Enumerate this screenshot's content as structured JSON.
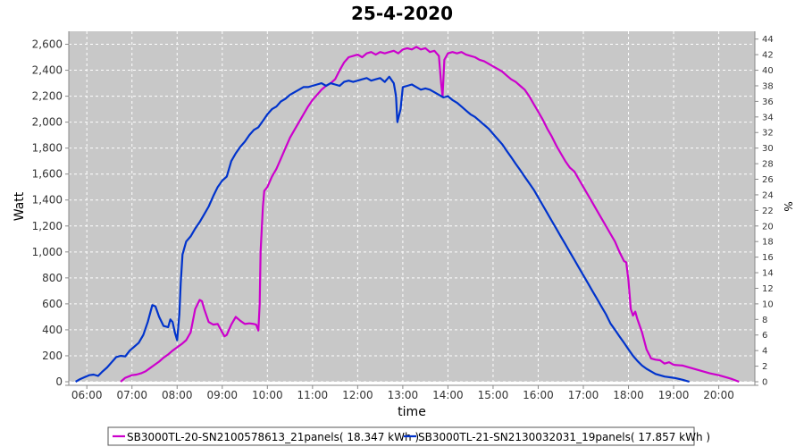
{
  "chart_data": {
    "type": "line",
    "title": "25-4-2020",
    "xlabel": "time",
    "ylabel": "Watt",
    "y2label": "%",
    "xlim": [
      5.6,
      20.8
    ],
    "ylim": [
      0,
      2700
    ],
    "y2lim": [
      0,
      45
    ],
    "xticks": [
      {
        "value": 6,
        "label": "06:00"
      },
      {
        "value": 7,
        "label": "07:00"
      },
      {
        "value": 8,
        "label": "08:00"
      },
      {
        "value": 9,
        "label": "09:00"
      },
      {
        "value": 10,
        "label": "10:00"
      },
      {
        "value": 11,
        "label": "11:00"
      },
      {
        "value": 12,
        "label": "12:00"
      },
      {
        "value": 13,
        "label": "13:00"
      },
      {
        "value": 14,
        "label": "14:00"
      },
      {
        "value": 15,
        "label": "15:00"
      },
      {
        "value": 16,
        "label": "16:00"
      },
      {
        "value": 17,
        "label": "17:00"
      },
      {
        "value": 18,
        "label": "18:00"
      },
      {
        "value": 19,
        "label": "19:00"
      },
      {
        "value": 20,
        "label": "20:00"
      }
    ],
    "yticks": [
      {
        "value": 0,
        "label": "0"
      },
      {
        "value": 200,
        "label": "200"
      },
      {
        "value": 400,
        "label": "400"
      },
      {
        "value": 600,
        "label": "600"
      },
      {
        "value": 800,
        "label": "800"
      },
      {
        "value": 1000,
        "label": "1,000"
      },
      {
        "value": 1200,
        "label": "1,200"
      },
      {
        "value": 1400,
        "label": "1,400"
      },
      {
        "value": 1600,
        "label": "1,600"
      },
      {
        "value": 1800,
        "label": "1,800"
      },
      {
        "value": 2000,
        "label": "2,000"
      },
      {
        "value": 2200,
        "label": "2,200"
      },
      {
        "value": 2400,
        "label": "2,400"
      },
      {
        "value": 2600,
        "label": "2,600"
      }
    ],
    "y2ticks": [
      0,
      2,
      4,
      6,
      8,
      10,
      12,
      14,
      16,
      18,
      20,
      22,
      24,
      26,
      28,
      30,
      32,
      34,
      36,
      38,
      40,
      42,
      44
    ],
    "grid": true,
    "background": "#c8c8c8",
    "legend_position": "bottom",
    "series": [
      {
        "name": "SB3000TL-20-SN2100578613_21panels( 18.347 kWh )",
        "color": "#cc00cc",
        "x": [
          6.75,
          6.85,
          7.0,
          7.1,
          7.2,
          7.3,
          7.4,
          7.5,
          7.6,
          7.7,
          7.8,
          7.9,
          8.0,
          8.1,
          8.2,
          8.3,
          8.4,
          8.5,
          8.55,
          8.6,
          8.7,
          8.8,
          8.9,
          9.0,
          9.05,
          9.1,
          9.2,
          9.3,
          9.4,
          9.5,
          9.6,
          9.7,
          9.75,
          9.8,
          9.83,
          9.85,
          9.9,
          9.93,
          10.0,
          10.1,
          10.2,
          10.3,
          10.4,
          10.5,
          10.6,
          10.7,
          10.8,
          10.9,
          11.0,
          11.1,
          11.2,
          11.3,
          11.4,
          11.5,
          11.6,
          11.7,
          11.8,
          11.9,
          12.0,
          12.1,
          12.2,
          12.3,
          12.4,
          12.5,
          12.6,
          12.7,
          12.8,
          12.9,
          13.0,
          13.1,
          13.2,
          13.3,
          13.4,
          13.5,
          13.6,
          13.7,
          13.8,
          13.85,
          13.88,
          13.92,
          14.0,
          14.1,
          14.2,
          14.3,
          14.4,
          14.5,
          14.6,
          14.7,
          14.8,
          14.9,
          15.0,
          15.1,
          15.2,
          15.3,
          15.4,
          15.5,
          15.6,
          15.7,
          15.8,
          15.9,
          16.0,
          16.1,
          16.2,
          16.3,
          16.4,
          16.5,
          16.6,
          16.7,
          16.8,
          16.9,
          17.0,
          17.1,
          17.2,
          17.3,
          17.4,
          17.5,
          17.6,
          17.7,
          17.8,
          17.9,
          17.95,
          18.0,
          18.05,
          18.1,
          18.15,
          18.2,
          18.3,
          18.4,
          18.5,
          18.6,
          18.7,
          18.8,
          18.9,
          19.0,
          19.2,
          19.4,
          19.6,
          19.8,
          20.0,
          20.2,
          20.3,
          20.45
        ],
        "y": [
          0,
          30,
          50,
          55,
          65,
          80,
          105,
          130,
          155,
          185,
          210,
          240,
          265,
          290,
          320,
          380,
          560,
          630,
          620,
          560,
          460,
          440,
          445,
          380,
          350,
          360,
          440,
          500,
          470,
          445,
          450,
          445,
          440,
          395,
          600,
          1000,
          1350,
          1470,
          1500,
          1580,
          1640,
          1720,
          1800,
          1880,
          1940,
          2000,
          2060,
          2120,
          2170,
          2210,
          2250,
          2280,
          2300,
          2330,
          2400,
          2460,
          2500,
          2510,
          2520,
          2500,
          2530,
          2540,
          2520,
          2540,
          2530,
          2540,
          2550,
          2530,
          2560,
          2570,
          2560,
          2580,
          2560,
          2570,
          2540,
          2550,
          2510,
          2300,
          2200,
          2480,
          2530,
          2540,
          2530,
          2540,
          2520,
          2510,
          2500,
          2480,
          2470,
          2450,
          2430,
          2410,
          2390,
          2360,
          2330,
          2310,
          2280,
          2250,
          2200,
          2140,
          2080,
          2020,
          1950,
          1890,
          1820,
          1760,
          1700,
          1650,
          1620,
          1560,
          1500,
          1440,
          1380,
          1320,
          1260,
          1200,
          1140,
          1080,
          1000,
          930,
          920,
          780,
          560,
          510,
          540,
          480,
          380,
          250,
          180,
          170,
          165,
          140,
          150,
          130,
          125,
          105,
          85,
          65,
          50,
          30,
          20,
          0
        ]
      },
      {
        "name": "SB3000TL-21-SN2130032031_19panels( 17.857 kWh )",
        "color": "#0033cc",
        "x": [
          5.75,
          5.85,
          5.95,
          6.05,
          6.15,
          6.25,
          6.35,
          6.45,
          6.55,
          6.65,
          6.75,
          6.85,
          6.95,
          7.05,
          7.15,
          7.25,
          7.35,
          7.45,
          7.52,
          7.6,
          7.7,
          7.8,
          7.85,
          7.9,
          7.95,
          8.0,
          8.05,
          8.08,
          8.12,
          8.2,
          8.3,
          8.4,
          8.5,
          8.6,
          8.7,
          8.8,
          8.9,
          9.0,
          9.1,
          9.2,
          9.3,
          9.4,
          9.5,
          9.6,
          9.7,
          9.8,
          9.9,
          10.0,
          10.1,
          10.2,
          10.3,
          10.4,
          10.5,
          10.6,
          10.7,
          10.8,
          10.9,
          11.0,
          11.1,
          11.2,
          11.3,
          11.4,
          11.5,
          11.6,
          11.7,
          11.8,
          11.9,
          12.0,
          12.1,
          12.2,
          12.3,
          12.4,
          12.5,
          12.6,
          12.7,
          12.8,
          12.85,
          12.88,
          12.95,
          13.0,
          13.1,
          13.2,
          13.3,
          13.4,
          13.5,
          13.6,
          13.7,
          13.8,
          13.9,
          14.0,
          14.1,
          14.2,
          14.3,
          14.4,
          14.5,
          14.6,
          14.7,
          14.8,
          14.9,
          15.0,
          15.1,
          15.2,
          15.3,
          15.4,
          15.5,
          15.6,
          15.7,
          15.8,
          15.9,
          16.0,
          16.1,
          16.2,
          16.3,
          16.4,
          16.5,
          16.6,
          16.7,
          16.8,
          16.9,
          17.0,
          17.1,
          17.2,
          17.3,
          17.4,
          17.5,
          17.6,
          17.7,
          17.8,
          17.9,
          18.0,
          18.1,
          18.2,
          18.3,
          18.4,
          18.5,
          18.6,
          18.8,
          19.0,
          19.2,
          19.35
        ],
        "y": [
          0,
          20,
          35,
          50,
          55,
          45,
          80,
          110,
          150,
          190,
          200,
          195,
          240,
          270,
          300,
          360,
          460,
          590,
          580,
          500,
          430,
          420,
          480,
          460,
          380,
          320,
          520,
          760,
          980,
          1080,
          1120,
          1180,
          1230,
          1290,
          1350,
          1430,
          1500,
          1550,
          1580,
          1700,
          1760,
          1810,
          1850,
          1900,
          1940,
          1960,
          2010,
          2060,
          2100,
          2120,
          2160,
          2180,
          2210,
          2230,
          2250,
          2270,
          2270,
          2280,
          2290,
          2300,
          2280,
          2300,
          2290,
          2280,
          2310,
          2320,
          2310,
          2320,
          2330,
          2340,
          2320,
          2330,
          2340,
          2310,
          2350,
          2300,
          2200,
          2000,
          2100,
          2270,
          2280,
          2290,
          2270,
          2250,
          2260,
          2250,
          2230,
          2210,
          2190,
          2200,
          2170,
          2150,
          2120,
          2090,
          2060,
          2040,
          2010,
          1980,
          1950,
          1910,
          1870,
          1830,
          1780,
          1730,
          1680,
          1630,
          1580,
          1530,
          1480,
          1420,
          1360,
          1300,
          1240,
          1180,
          1120,
          1060,
          1000,
          940,
          880,
          820,
          760,
          700,
          640,
          580,
          520,
          450,
          400,
          350,
          300,
          250,
          200,
          160,
          125,
          100,
          80,
          60,
          40,
          30,
          15,
          0
        ]
      }
    ]
  }
}
